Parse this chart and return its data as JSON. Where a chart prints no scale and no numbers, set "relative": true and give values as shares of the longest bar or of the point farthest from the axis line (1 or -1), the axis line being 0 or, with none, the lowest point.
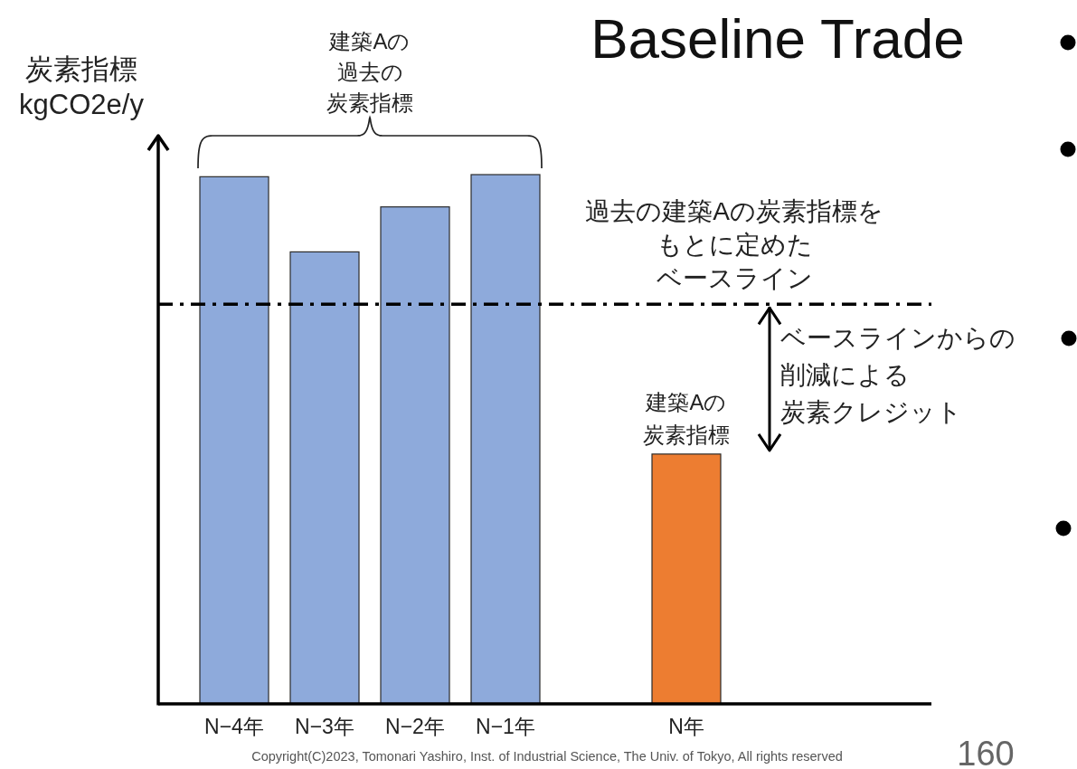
{
  "chart_data": {
    "type": "bar",
    "title": "Baseline Trade",
    "ylabel": "炭素指標\nkgCO2e/y",
    "categories": [
      "N−4年",
      "N−3年",
      "N−2年",
      "N−1年",
      null,
      "N年"
    ],
    "values": [
      0.996,
      0.854,
      0.939,
      1,
      null,
      0.472
    ],
    "colors": [
      "#8eaadb",
      "#8eaadb",
      "#8eaadb",
      "#8eaadb",
      null,
      "#ed7d31"
    ],
    "relative": true,
    "ref_lines": [
      {
        "axis": "y",
        "value": 0.755,
        "label": "過去の建築Aの炭素指標をもとに定めたベースライン",
        "color": "#000000",
        "line_style": "dashed"
      }
    ],
    "annotations": [
      "建築Aの過去の炭素指標",
      {
        "text": "建築Aの炭素指標",
        "x": "N年",
        "y": 0.472
      },
      "ベースラインからの削減による炭素クレジット",
      "Copyright(C)2023, Tomonari Yashiro, Inst. of Industrial Science, The Univ. of Tokyo, All rights reserved",
      "160"
    ]
  }
}
